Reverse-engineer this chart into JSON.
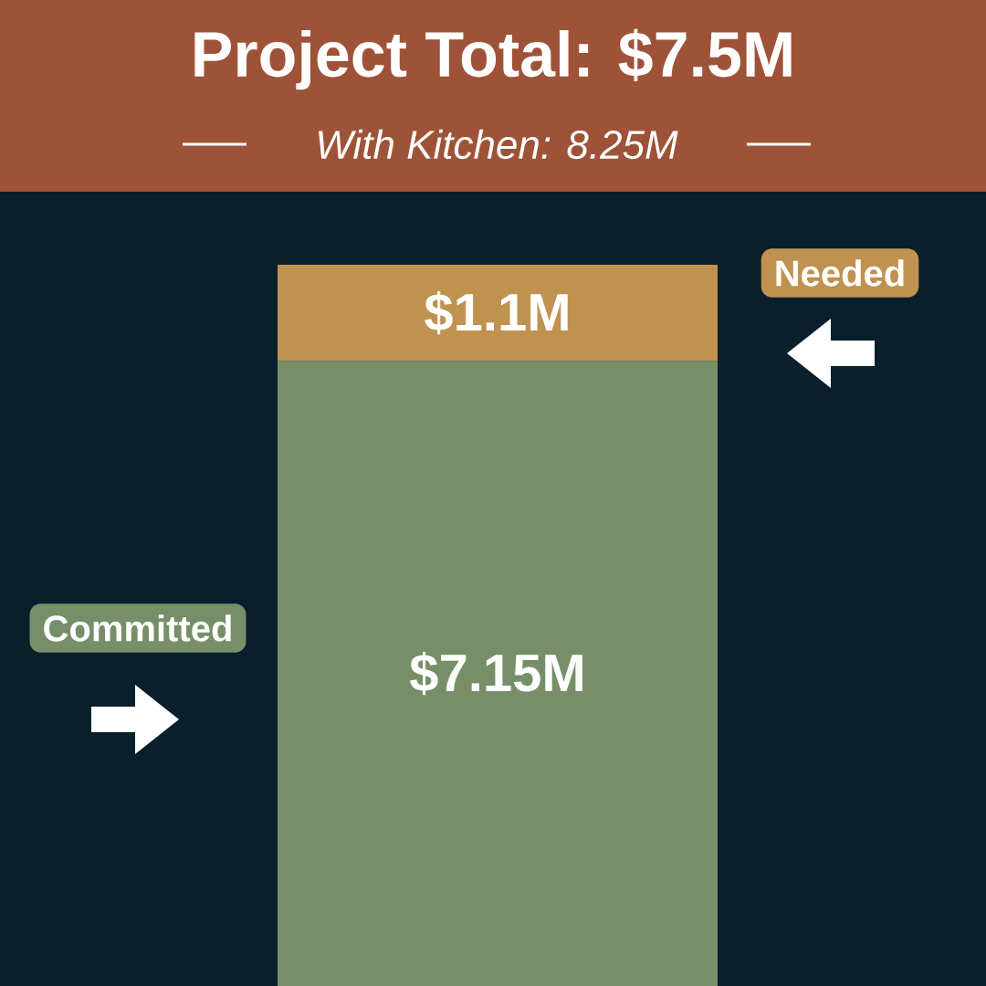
{
  "chart_data": {
    "type": "bar",
    "title": "Project Total: $7.5M",
    "subtitle": "With Kitchen: 8.25M",
    "categories": [
      null
    ],
    "stacked": true,
    "series": [
      {
        "name": "Committed",
        "color": "#778f69",
        "values": [
          7.15
        ],
        "value_labels": [
          "$7.15M"
        ]
      },
      {
        "name": "Needed",
        "color": "#c0924f",
        "values": [
          1.1
        ],
        "value_labels": [
          "$1.1M"
        ]
      }
    ]
  }
}
